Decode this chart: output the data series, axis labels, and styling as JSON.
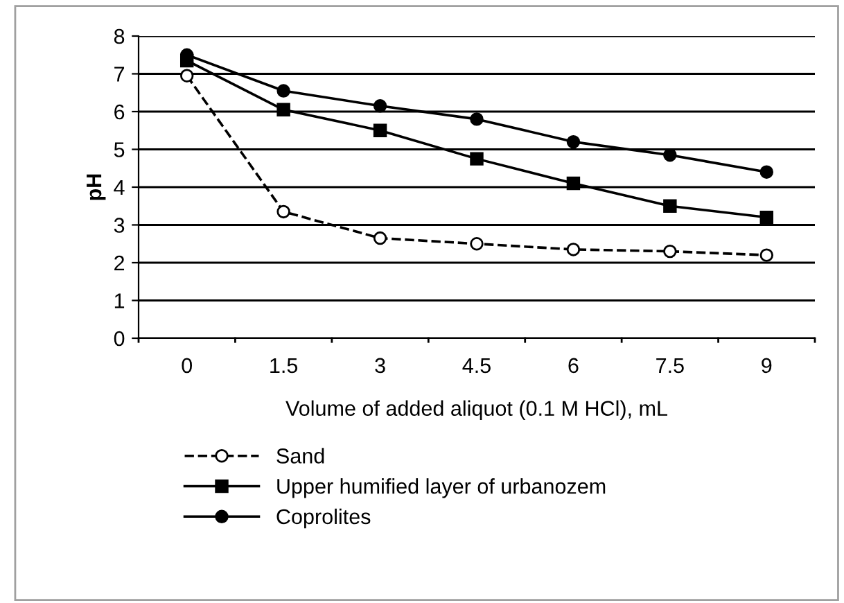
{
  "chart_data": {
    "type": "line",
    "xlabel": "Volume of added aliquot (0.1 M HCl), mL",
    "ylabel": "pH",
    "categories": [
      "0",
      "1.5",
      "3",
      "4.5",
      "6",
      "7.5",
      "9"
    ],
    "series": [
      {
        "name": "Sand",
        "color": "#000000",
        "marker": "circle",
        "line_style": "dashed",
        "values": [
          6.95,
          3.35,
          2.65,
          2.5,
          2.35,
          2.3,
          2.2
        ]
      },
      {
        "name": "Upper humified layer of urbanozem",
        "color": "#000000",
        "marker": "square",
        "line_style": "solid",
        "values": [
          7.35,
          6.05,
          5.5,
          4.75,
          4.1,
          3.5,
          3.2
        ]
      },
      {
        "name": "Coprolites",
        "color": "#000000",
        "marker": "circle",
        "line_style": "solid",
        "values": [
          7.5,
          6.55,
          6.15,
          5.8,
          5.2,
          4.85,
          4.4
        ]
      }
    ],
    "ylim": [
      0,
      8
    ],
    "yticks": [
      0,
      1,
      2,
      3,
      4,
      5,
      6,
      7,
      8
    ],
    "grid": "y",
    "legend": "bottom"
  }
}
